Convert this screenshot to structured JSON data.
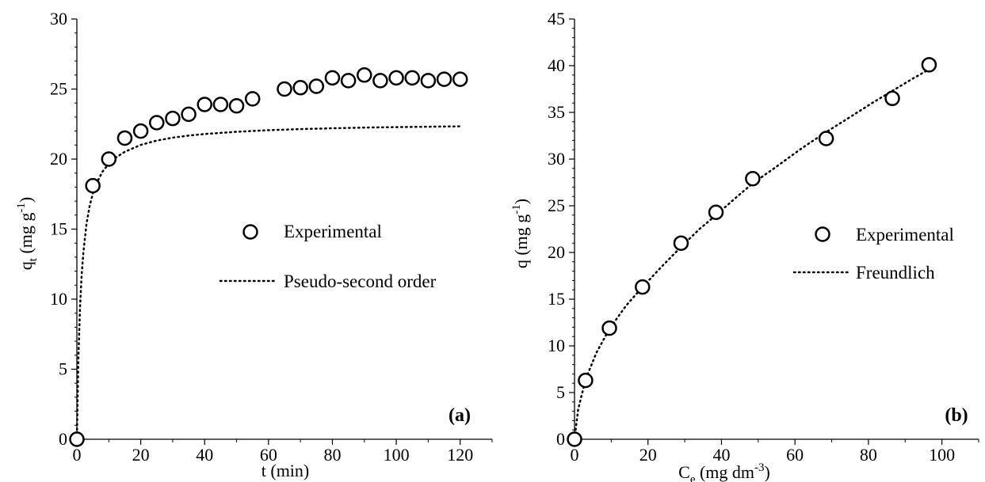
{
  "colors": {
    "axis": "#000000",
    "marker_stroke": "#000000",
    "marker_fill": "#ffffff",
    "fit_line": "#000000",
    "background": "#ffffff"
  },
  "chart_data": [
    {
      "type": "scatter",
      "panel_label": "(a)",
      "xlabel": {
        "base": "t (min)",
        "sub": "",
        "tail": ""
      },
      "ylabel": {
        "base": "q",
        "sub": "t",
        "tail": " (mg g",
        "sup": "-1",
        "close": ")"
      },
      "xlim": [
        0,
        130
      ],
      "ylim": [
        0,
        30
      ],
      "xticks": [
        0,
        20,
        40,
        60,
        80,
        100,
        120
      ],
      "yticks": [
        0,
        5,
        10,
        15,
        20,
        25,
        30
      ],
      "xminor": 10,
      "yminor": 1,
      "grid": false,
      "legend_position": "center-right",
      "series": [
        {
          "name": "Experimental",
          "kind": "markers",
          "marker": "open-circle",
          "x": [
            0,
            5,
            10,
            15,
            20,
            25,
            30,
            35,
            40,
            45,
            50,
            55,
            65,
            70,
            75,
            80,
            85,
            90,
            95,
            100,
            105,
            110,
            115,
            120
          ],
          "y": [
            0,
            18.1,
            20.0,
            21.5,
            22.0,
            22.6,
            22.9,
            23.2,
            23.9,
            23.9,
            23.8,
            24.3,
            25.0,
            25.1,
            25.2,
            25.8,
            25.6,
            26.0,
            25.6,
            25.8,
            25.8,
            25.6,
            25.7,
            25.7
          ]
        },
        {
          "name": "Pseudo-second order",
          "kind": "dotted-line",
          "x": [
            0,
            0.5,
            1,
            1.5,
            2,
            3,
            4,
            5,
            6,
            8,
            10,
            12,
            15,
            20,
            25,
            30,
            35,
            40,
            50,
            60,
            70,
            80,
            90,
            100,
            110,
            120
          ],
          "y": [
            0,
            5.99,
            9.43,
            11.68,
            13.27,
            15.35,
            16.65,
            17.55,
            18.2,
            19.09,
            19.67,
            20.08,
            20.52,
            21.01,
            21.32,
            21.53,
            21.68,
            21.79,
            21.95,
            22.06,
            22.14,
            22.2,
            22.25,
            22.28,
            22.31,
            22.34
          ]
        }
      ]
    },
    {
      "type": "scatter",
      "panel_label": "(b)",
      "xlabel": {
        "base": "C",
        "sub": "e",
        "tail": " (mg dm",
        "sup": "-3",
        "close": ")"
      },
      "ylabel": {
        "base": "q (mg g",
        "sub": "",
        "tail": "",
        "sup": "-1",
        "close": ")"
      },
      "xlim": [
        0,
        110
      ],
      "ylim": [
        0,
        45
      ],
      "xticks": [
        0,
        20,
        40,
        60,
        80,
        100
      ],
      "yticks": [
        0,
        5,
        10,
        15,
        20,
        25,
        30,
        35,
        40,
        45
      ],
      "xminor": 10,
      "yminor": 1,
      "grid": false,
      "legend_position": "center-right",
      "series": [
        {
          "name": "Experimental",
          "kind": "markers",
          "marker": "open-circle",
          "x": [
            0,
            3,
            9.5,
            18.5,
            29,
            38.5,
            48.5,
            68.5,
            86.5,
            96.5
          ],
          "y": [
            0,
            6.3,
            11.9,
            16.3,
            21.0,
            24.3,
            27.9,
            32.2,
            36.5,
            40.1
          ]
        },
        {
          "name": "Freundlich",
          "kind": "dotted-line",
          "x": [
            0,
            1,
            3,
            6,
            9.5,
            14,
            18.5,
            24,
            29,
            34,
            38.5,
            44,
            48.5,
            55,
            62,
            68.5,
            75,
            81,
            86.5,
            92,
            96.5
          ],
          "y": [
            0,
            3.2,
            6.4,
            9.3,
            11.8,
            14.3,
            16.3,
            18.6,
            20.6,
            22.5,
            24.0,
            25.9,
            27.4,
            29.2,
            31.2,
            32.9,
            34.5,
            36.0,
            37.3,
            38.6,
            39.6
          ]
        }
      ]
    }
  ]
}
